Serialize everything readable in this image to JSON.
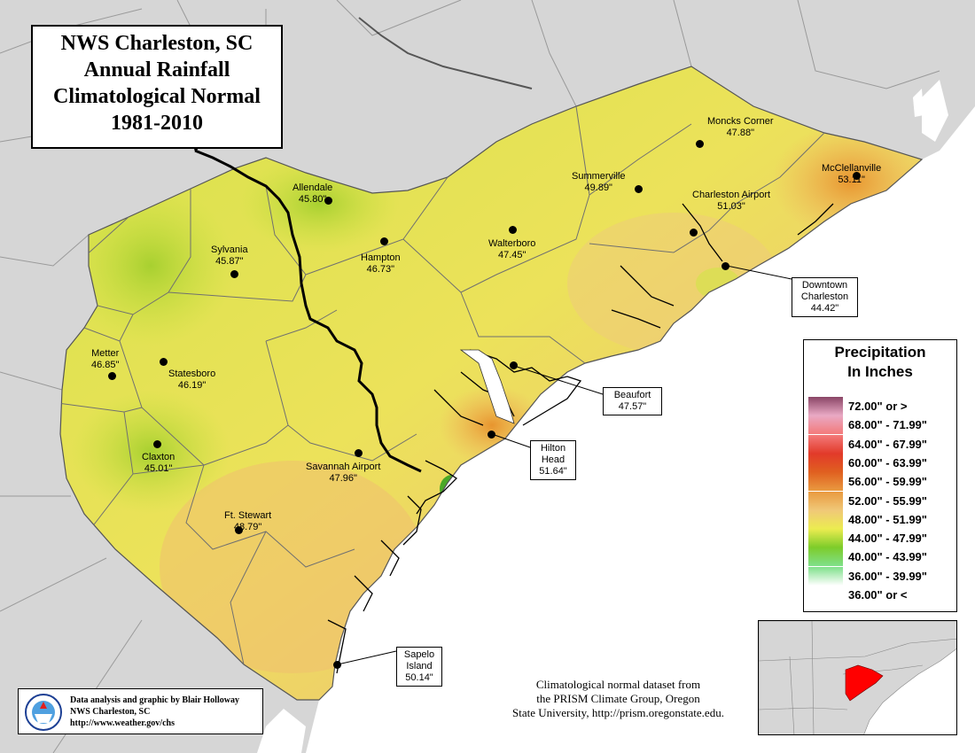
{
  "title": {
    "line1": "NWS Charleston, SC",
    "line2": "Annual Rainfall",
    "line3": "Climatological Normal",
    "line4": "1981-2010"
  },
  "stations": [
    {
      "name": "Allendale",
      "value": "45.80\""
    },
    {
      "name": "Sylvania",
      "value": "45.87\""
    },
    {
      "name": "Hampton",
      "value": "46.73\""
    },
    {
      "name": "Walterboro",
      "value": "47.45\""
    },
    {
      "name": "Summerville",
      "value": "49.89\""
    },
    {
      "name": "Moncks Corner",
      "value": "47.88\""
    },
    {
      "name": "McClellanville",
      "value": "53.11\""
    },
    {
      "name": "Charleston Airport",
      "value": "51.03\""
    },
    {
      "name": "Metter",
      "value": "46.85\""
    },
    {
      "name": "Statesboro",
      "value": "46.19\""
    },
    {
      "name": "Claxton",
      "value": "45.01\""
    },
    {
      "name": "Savannah Airport",
      "value": "47.96\""
    },
    {
      "name": "Ft. Stewart",
      "value": "48.79\""
    }
  ],
  "callouts": [
    {
      "name": "Downtown Charleston",
      "value": "44.42\""
    },
    {
      "name": "Beaufort",
      "value": "47.57\""
    },
    {
      "name": "Hilton Head",
      "value": "51.64\""
    },
    {
      "name": "Sapelo Island",
      "value": "50.14\""
    }
  ],
  "legend": {
    "title_line1": "Precipitation",
    "title_line2": "In Inches",
    "items": [
      {
        "label": "72.00\" or >",
        "color": "#8a4566"
      },
      {
        "label": "68.00\" - 71.99\"",
        "color": "#e9a9c4"
      },
      {
        "label": "64.00\" - 67.99\"",
        "color": "#f37a7a"
      },
      {
        "label": "60.00\" - 63.99\"",
        "color": "#e23a2a"
      },
      {
        "label": "56.00\" - 59.99\"",
        "color": "#e06020"
      },
      {
        "label": "52.00\" - 55.99\"",
        "color": "#e99a40"
      },
      {
        "label": "48.00\" - 51.99\"",
        "color": "#f0c878"
      },
      {
        "label": "44.00\" - 47.99\"",
        "color": "#ecec50"
      },
      {
        "label": "40.00\" - 43.99\"",
        "color": "#7dcc2a"
      },
      {
        "label": "36.00\" - 39.99\"",
        "color": "#7fe08a"
      },
      {
        "label": "36.00\" or <",
        "color": "#ffffff"
      }
    ]
  },
  "credit": {
    "line1": "Data analysis and graphic by Blair Holloway",
    "line2": "NWS Charleston, SC",
    "line3": "http://www.weather.gov/chs",
    "logo_text": "NATIONAL WEATHER SERVICE"
  },
  "source": {
    "line1": "Climatological normal dataset from",
    "line2": "the PRISM Climate Group, Oregon",
    "line3": "State University, http://prism.oregonstate.edu."
  },
  "colors": {
    "background_land": "#d6d6d6",
    "ocean": "#ffffff",
    "county_lines": "#888888",
    "state_border": "#000000",
    "inset_highlight": "#ff0000"
  }
}
